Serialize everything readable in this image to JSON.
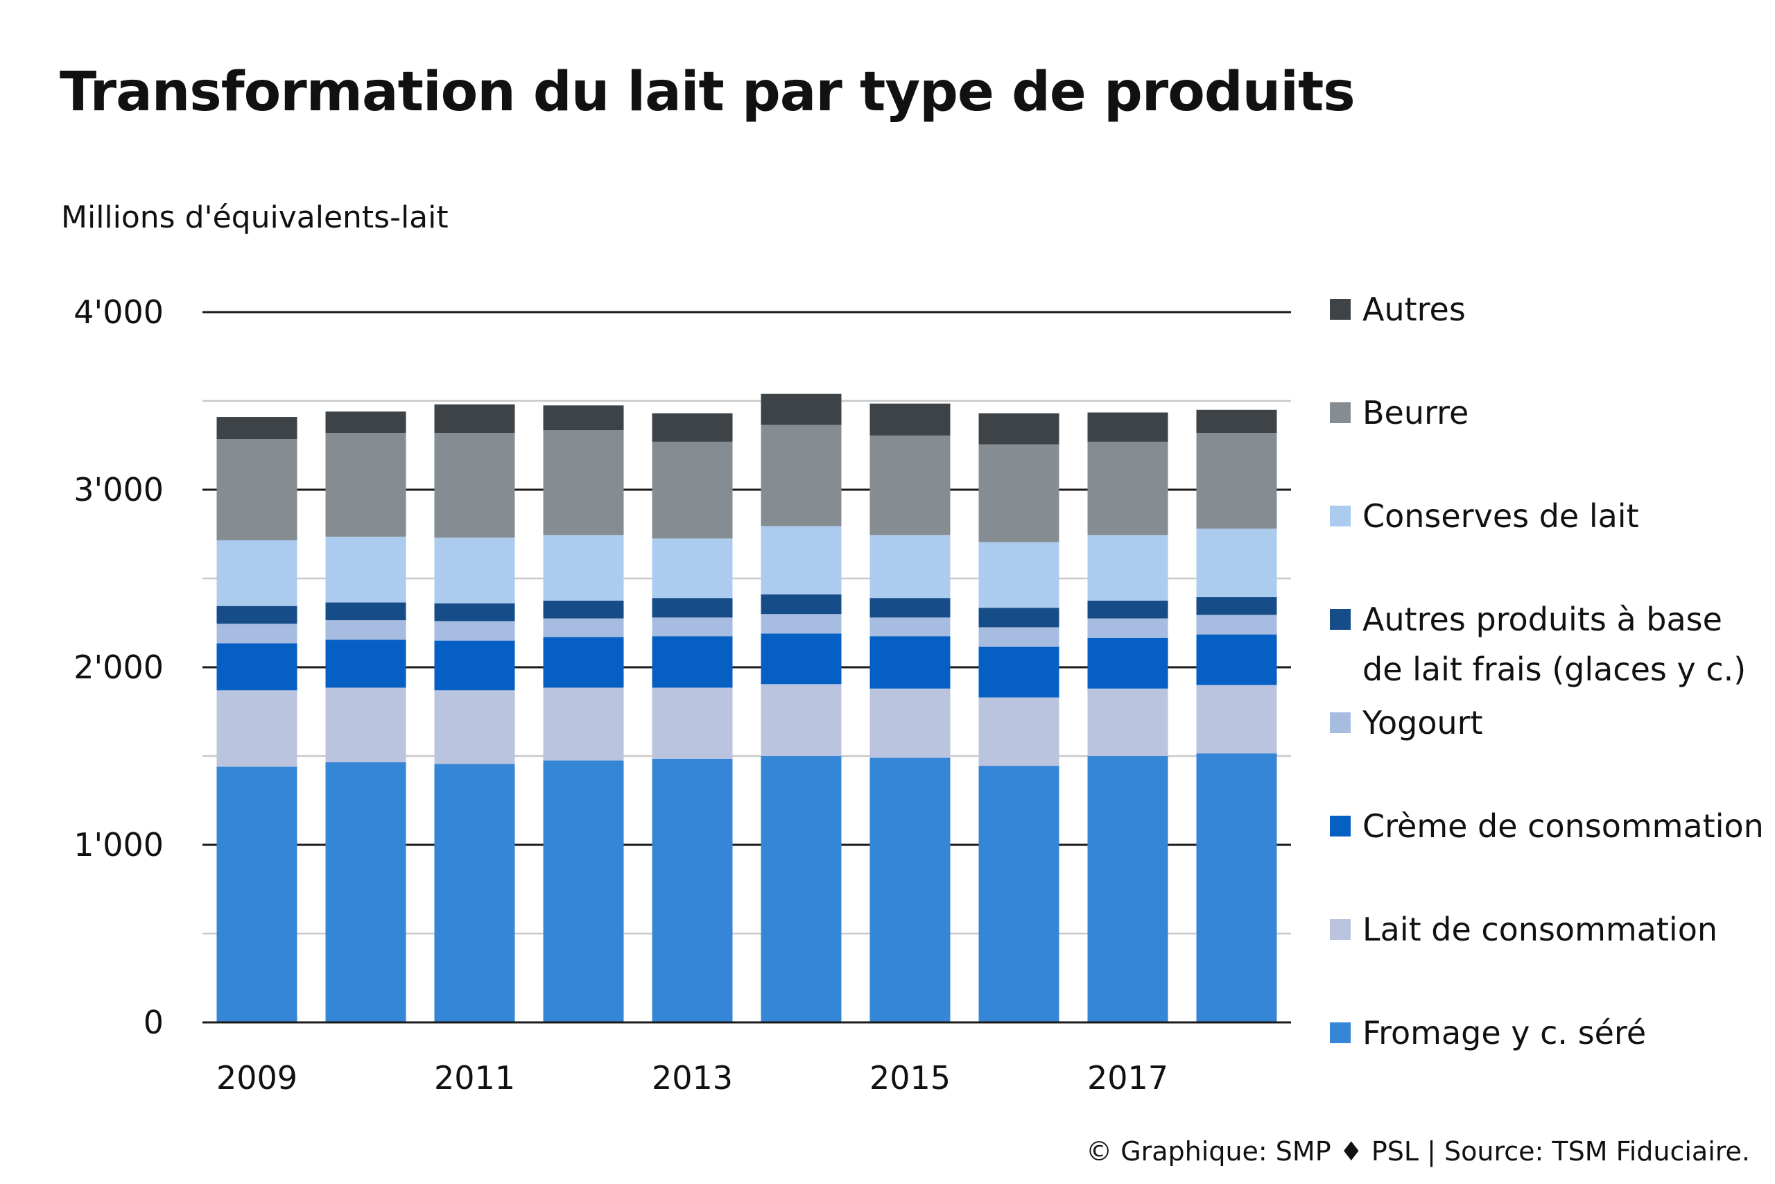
{
  "chart_data": {
    "type": "bar",
    "stacked": true,
    "title": "Transformation du lait par type de produits",
    "ylabel": "Millions d'équivalents-lait",
    "ylim": [
      0,
      4000
    ],
    "yticks": [
      0,
      1000,
      2000,
      3000,
      4000
    ],
    "ytick_labels": [
      "0",
      "1'000",
      "2'000",
      "3'000",
      "4'000"
    ],
    "grid": true,
    "legend_position": "right",
    "categories": [
      "2009",
      "2010",
      "2011",
      "2012",
      "2013",
      "2014",
      "2015",
      "2016",
      "2017",
      "2018"
    ],
    "x_tick_labels": [
      "2009",
      "",
      "2011",
      "",
      "2013",
      "",
      "2015",
      "",
      "2017",
      ""
    ],
    "series": [
      {
        "name": "Fromage y c. séré",
        "color": "#3686d8",
        "values": [
          1440,
          1465,
          1455,
          1475,
          1485,
          1500,
          1490,
          1445,
          1500,
          1515
        ]
      },
      {
        "name": "Lait de consommation",
        "color": "#bac4df",
        "values": [
          430,
          420,
          415,
          410,
          400,
          405,
          390,
          385,
          380,
          385
        ]
      },
      {
        "name": "Crème de consommation",
        "color": "#065fc3",
        "values": [
          265,
          270,
          280,
          285,
          290,
          285,
          295,
          285,
          285,
          285
        ]
      },
      {
        "name": "Yogourt",
        "color": "#a6bce0",
        "values": [
          110,
          110,
          110,
          105,
          105,
          110,
          105,
          110,
          110,
          110
        ]
      },
      {
        "name": "Autres produits à base de lait frais (glaces y c.)",
        "color": "#164c88",
        "values": [
          100,
          100,
          100,
          100,
          110,
          110,
          110,
          110,
          100,
          100
        ]
      },
      {
        "name": "Conserves de lait",
        "color": "#acccef",
        "values": [
          370,
          370,
          370,
          370,
          335,
          385,
          355,
          370,
          370,
          385
        ]
      },
      {
        "name": "Beurre",
        "color": "#868d92",
        "values": [
          570,
          585,
          590,
          590,
          545,
          570,
          560,
          550,
          525,
          540
        ]
      },
      {
        "name": "Autres",
        "color": "#3e4347",
        "values": [
          125,
          120,
          160,
          140,
          160,
          175,
          180,
          175,
          165,
          130
        ]
      }
    ],
    "legend_labels": [
      [
        "Autres"
      ],
      [
        "Beurre"
      ],
      [
        "Conserves de lait"
      ],
      [
        "Autres produits à base",
        "de lait frais (glaces y c.)"
      ],
      [
        "Yogourt"
      ],
      [
        "Crème de consommation"
      ],
      [
        "Lait de consommation"
      ],
      [
        "Fromage y c. séré"
      ]
    ]
  },
  "source": "© Graphique: SMP ♦ PSL | Source: TSM Fiduciaire."
}
